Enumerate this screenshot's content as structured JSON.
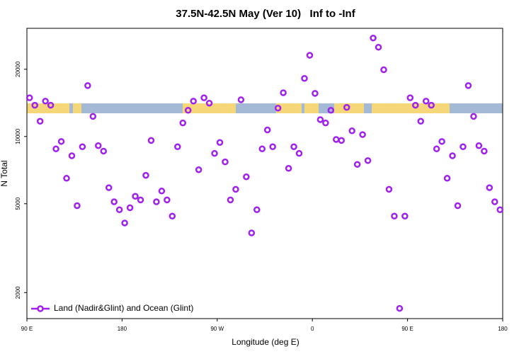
{
  "chart_data": {
    "type": "scatter",
    "title": "37.5N-42.5N May (Ver 10)   Inf to -Inf",
    "x_label": "Longitude (deg E)",
    "y_label": "N Total",
    "ylog": true,
    "legend": "bottom-left",
    "xlim": [
      90,
      540
    ],
    "xticks": [
      {
        "value": 90,
        "label": "90 E"
      },
      180,
      {
        "value": 270,
        "label": "90 W"
      },
      {
        "value": 360,
        "label": "0"
      },
      {
        "value": 450,
        "label": "90 E"
      },
      {
        "value": 540,
        "label": "180"
      }
    ],
    "ylim": [
      1530,
      30500
    ],
    "yticks": [
      2000,
      5000,
      10000,
      20000
    ],
    "x": [
      92.5,
      97.5,
      102.5,
      107.5,
      112.5,
      117.5,
      122.5,
      127.5,
      132.5,
      137.5,
      142.5,
      147.5,
      152.5,
      157.5,
      162.5,
      167.5,
      172.5,
      177.5,
      182.5,
      187.5,
      192.5,
      197.5,
      202.5,
      207.5,
      212.5,
      217.5,
      222.5,
      227.5,
      232.5,
      237.5,
      242.5,
      247.5,
      252.5,
      257.5,
      262.5,
      267.5,
      272.5,
      277.5,
      282.5,
      287.5,
      292.5,
      297.5,
      302.5,
      307.5,
      312.5,
      317.5,
      322.5,
      327.5,
      332.5,
      337.5,
      342.5,
      347.5,
      352.5,
      357.5,
      362.5,
      367.5,
      372.5,
      377.5,
      382.5,
      387.5,
      392.5,
      397.5,
      402.5,
      407.5,
      412.5,
      417.5,
      422.5,
      427.5,
      432.5,
      437.5,
      442.5,
      447.5,
      452.5,
      457.5,
      462.5,
      467.5,
      472.5,
      477.5,
      482.5,
      487.5,
      492.5,
      497.5,
      502.5,
      507.5,
      512.5,
      517.5,
      522.5,
      527.5,
      532.5,
      537.5
    ],
    "series": [
      {
        "name": "Land (Nadir&Glint) and Ocean (Glint)",
        "color": "#a020f0",
        "values": [
          14900,
          13800,
          11700,
          14400,
          13800,
          8800,
          9500,
          6500,
          8200,
          4900,
          9000,
          16900,
          12300,
          9100,
          8600,
          5900,
          5100,
          4700,
          4100,
          4800,
          5400,
          5200,
          6700,
          9600,
          5100,
          5700,
          5200,
          4400,
          9000,
          11500,
          13100,
          14400,
          7100,
          14900,
          14100,
          8400,
          9400,
          7700,
          5200,
          5800,
          14600,
          6600,
          3700,
          4700,
          8800,
          10700,
          9000,
          13400,
          15700,
          7200,
          9000,
          8400,
          18200,
          23100,
          15600,
          11900,
          11500,
          13100,
          9700,
          9600,
          13500,
          10600,
          7500,
          10200,
          7800,
          27600,
          25100,
          19900,
          5800,
          4400,
          1700,
          4400,
          14900,
          13800,
          11700,
          14400,
          13800,
          8800,
          9500,
          6500,
          8200,
          4900,
          9000,
          16900,
          12300,
          9100,
          8600,
          5900,
          5100,
          4700
        ]
      }
    ]
  }
}
